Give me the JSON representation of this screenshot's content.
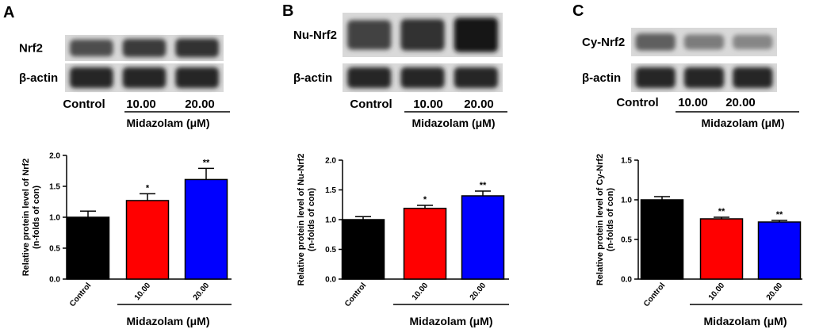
{
  "panels": [
    {
      "letter": "A",
      "blot": {
        "rows": [
          "Nrf2",
          "β-actin"
        ],
        "lanes": [
          "Control",
          "10.00",
          "20.00"
        ],
        "group_label": "Midazolam (μM)",
        "band_intensity": [
          [
            0.65,
            0.75,
            0.8
          ],
          [
            0.85,
            0.85,
            0.85
          ]
        ]
      }
    },
    {
      "letter": "B",
      "blot": {
        "rows": [
          "Nu-Nrf2",
          "β-actin"
        ],
        "lanes": [
          "Control",
          "10.00",
          "20.00"
        ],
        "group_label": "Midazolam (μM)",
        "band_intensity": [
          [
            0.7,
            0.8,
            0.95
          ],
          [
            0.85,
            0.85,
            0.85
          ]
        ]
      }
    },
    {
      "letter": "C",
      "blot": {
        "rows": [
          "Cy-Nrf2",
          "β-actin"
        ],
        "lanes": [
          "Control",
          "10.00",
          "20.00"
        ],
        "group_label": "Midazolam (μM)",
        "band_intensity": [
          [
            0.55,
            0.4,
            0.35
          ],
          [
            0.85,
            0.85,
            0.85
          ]
        ]
      }
    }
  ],
  "chart_data": [
    {
      "type": "bar",
      "categories": [
        "Control",
        "10.00",
        "20.00"
      ],
      "values": [
        1.0,
        1.27,
        1.61
      ],
      "errors": [
        0.1,
        0.11,
        0.18
      ],
      "significance": [
        "",
        "*",
        "**"
      ],
      "colors": [
        "#000000",
        "#ff0000",
        "#0000ff"
      ],
      "ylabel": "Relative protein level of Nrf2 (n-folds of con)",
      "xlabel": "Midazolam (μM)",
      "ylim": [
        0,
        2.0
      ],
      "yticks": [
        "0.0",
        "0.5",
        "1.0",
        "1.5",
        "2.0"
      ]
    },
    {
      "type": "bar",
      "categories": [
        "Control",
        "10.00",
        "20.00"
      ],
      "values": [
        1.0,
        1.19,
        1.4
      ],
      "errors": [
        0.05,
        0.05,
        0.08
      ],
      "significance": [
        "",
        "*",
        "**"
      ],
      "colors": [
        "#000000",
        "#ff0000",
        "#0000ff"
      ],
      "ylabel": "Relative protein level of Nu-Nrf2 (n-folds of con)",
      "xlabel": "Midazolam (μM)",
      "ylim": [
        0,
        2.0
      ],
      "yticks": [
        "0.0",
        "0.5",
        "1.0",
        "1.5",
        "2.0"
      ]
    },
    {
      "type": "bar",
      "categories": [
        "Control",
        "10.00",
        "20.00"
      ],
      "values": [
        1.0,
        0.76,
        0.72
      ],
      "errors": [
        0.04,
        0.02,
        0.02
      ],
      "significance": [
        "",
        "**",
        "**"
      ],
      "colors": [
        "#000000",
        "#ff0000",
        "#0000ff"
      ],
      "ylabel": "Relative protein level of Cy-Nrf2 (n-folds of con)",
      "xlabel": "Midazolam (μM)",
      "ylim": [
        0,
        1.5
      ],
      "yticks": [
        "0.0",
        "0.5",
        "1.0",
        "1.5"
      ]
    }
  ]
}
